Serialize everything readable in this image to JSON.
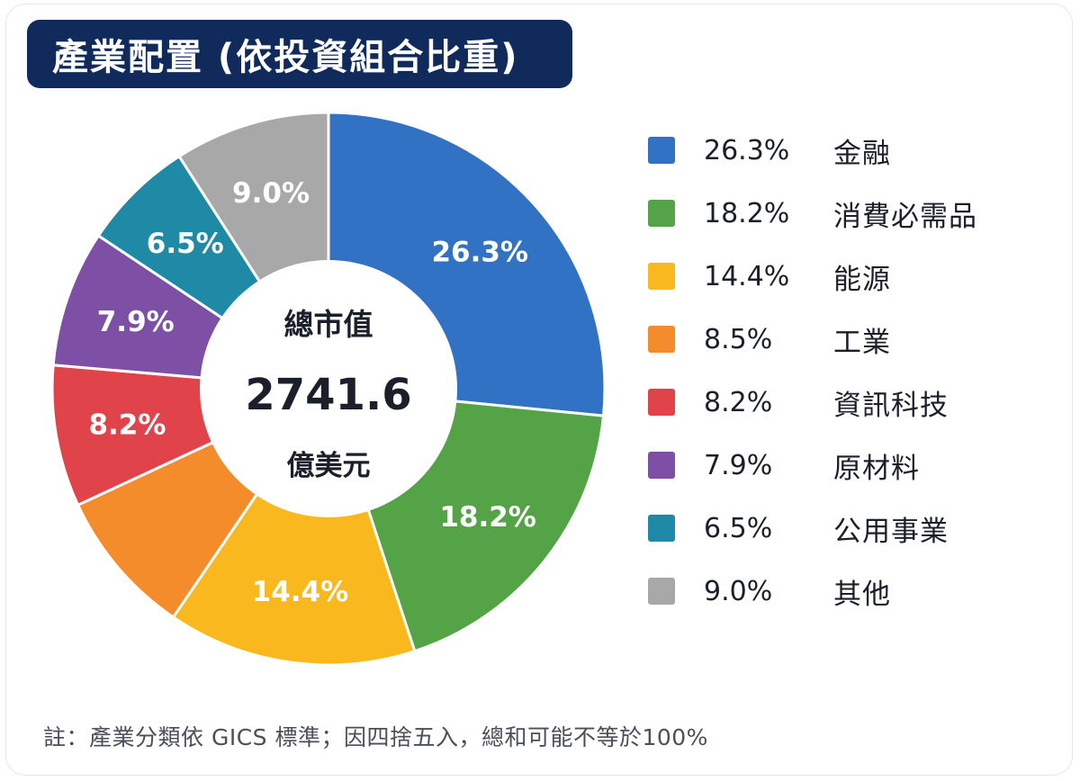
{
  "header": {
    "title": "產業配置 (依投資組合比重)"
  },
  "center": {
    "label": "總市值",
    "value": "2741.6",
    "unit": "億美元"
  },
  "footnote": "註：產業分類依 GICS 標準；因四捨五入，總和可能不等於100%",
  "chart_data": {
    "type": "pie",
    "title": "產業配置 (依投資組合比重)",
    "donut": true,
    "legend_position": "right",
    "categories": [
      "金融",
      "消費必需品",
      "能源",
      "工業",
      "資訊科技",
      "原材料",
      "公用事業",
      "其他"
    ],
    "values": [
      26.3,
      18.2,
      14.4,
      8.5,
      8.2,
      7.9,
      6.5,
      9.0
    ],
    "value_labels": [
      "26.3%",
      "18.2%",
      "14.4%",
      "8.5%",
      "8.2%",
      "7.9%",
      "6.5%",
      "9.0%"
    ],
    "slice_labels_visible": [
      true,
      true,
      true,
      false,
      true,
      true,
      true,
      true
    ],
    "colors": [
      "#3272c4",
      "#54a447",
      "#f9b81e",
      "#f48c2b",
      "#e0444a",
      "#7d4fa5",
      "#1e8aa5",
      "#a8a8a8"
    ]
  }
}
